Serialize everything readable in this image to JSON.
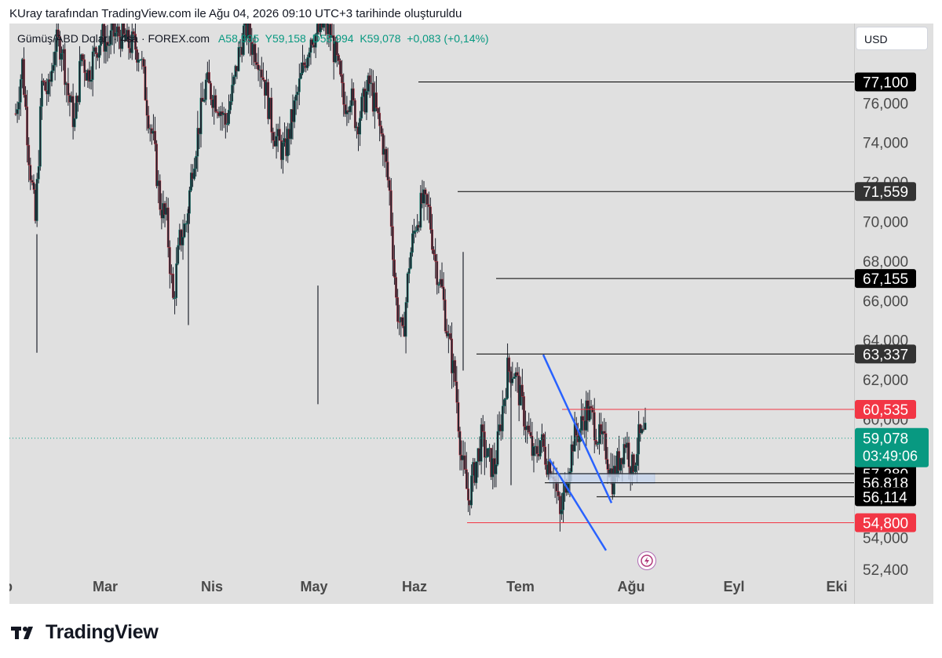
{
  "header": {
    "title": "KUray tarafından TradingView.com ile Ağu 04, 2026 09:10 UTC+3 tarihinde oluşturuldu"
  },
  "legend": {
    "symbol": "Gümüş/ABD Doları · 4sa · FOREX.com",
    "open": "A58,995",
    "high": "Y59,158",
    "low": "D58,994",
    "close": "K59,078",
    "change": "+0,083 (+0,14%)"
  },
  "currency": {
    "label": "USD"
  },
  "brand": {
    "name": "TradingView",
    "logo_icon": "tradingview-logo-icon"
  },
  "colors": {
    "background": "#e0e0e0",
    "up": "#089981",
    "down": "#f23645",
    "trendline": "#2962ff"
  },
  "chart_data": {
    "type": "candlestick",
    "symbol": "Gümüş/ABD Doları",
    "interval": "4sa",
    "x_ticks": [
      "Şub",
      "Mar",
      "Nis",
      "May",
      "Haz",
      "Tem",
      "Ağu",
      "Eyl",
      "Eki"
    ],
    "y_ticks": [
      "52,400",
      "54,000",
      "56,000",
      "58,000",
      "60,000",
      "62,000",
      "64,000",
      "66,000",
      "68,000",
      "70,000",
      "72,000",
      "74,000",
      "76,000"
    ],
    "ylim": [
      52.4,
      78.5
    ],
    "last_price": {
      "value": "59,078",
      "countdown": "03:49:06",
      "color": "#089981"
    },
    "horizontal_levels": [
      {
        "value": "77,100",
        "price": 77.1,
        "start": "Haz",
        "color": "#000000"
      },
      {
        "value": "71,559",
        "price": 71.559,
        "start": "Haz",
        "color": "#000000"
      },
      {
        "value": "67,155",
        "price": 67.155,
        "start": "Tem",
        "color": "#000000"
      },
      {
        "value": "63,337",
        "price": 63.337,
        "start": "Haz",
        "color": "#000000"
      },
      {
        "value": "60,535",
        "price": 60.535,
        "start": "Tem",
        "color": "#f23645"
      },
      {
        "value": "57,280",
        "price": 57.28,
        "start": "Tem",
        "color": "#000000"
      },
      {
        "value": "56,818",
        "price": 56.818,
        "start": "Tem",
        "color": "#000000"
      },
      {
        "value": "56,114",
        "price": 56.114,
        "start": "Tem",
        "color": "#000000"
      },
      {
        "value": "54,800",
        "price": 54.8,
        "start": "Haz",
        "color": "#f23645"
      }
    ],
    "trendlines": [
      {
        "from": [
          "Tem",
          63.3
        ],
        "to": [
          "Ağu",
          55.8
        ],
        "color": "#2962ff"
      },
      {
        "from": [
          "Tem",
          58.0
        ],
        "to": [
          "Ağu",
          53.4
        ],
        "color": "#2962ff"
      }
    ],
    "zone": {
      "from": 56.8,
      "to": 57.3,
      "color": "#c5d4ec"
    },
    "closes": [
      75.5,
      78.0,
      73.5,
      70.0,
      77.0,
      76.5,
      79.0,
      79.0,
      76.5,
      75.0,
      78.5,
      77.5,
      78.5,
      79.5,
      79.0,
      79.5,
      79.5,
      79.0,
      79.0,
      78.5,
      76.0,
      74.0,
      71.0,
      70.0,
      66.0,
      69.0,
      70.0,
      73.0,
      75.0,
      77.0,
      76.5,
      76.0,
      75.0,
      76.5,
      78.5,
      80.0,
      79.0,
      78.5,
      77.0,
      75.0,
      74.0,
      73.5,
      75.0,
      76.5,
      78.0,
      79.5,
      79.5,
      80.0,
      79.5,
      78.0,
      76.0,
      76.5,
      75.0,
      76.0,
      77.0,
      75.5,
      74.0,
      71.5,
      66.0,
      64.0,
      68.0,
      70.0,
      71.0,
      70.5,
      68.0,
      66.5,
      64.0,
      62.0,
      58.0,
      56.0,
      57.5,
      59.0,
      58.0,
      57.5,
      60.0,
      62.5,
      62.5,
      61.0,
      59.5,
      58.0,
      59.0,
      58.0,
      57.5,
      55.0,
      57.0,
      59.0,
      59.5,
      60.5,
      60.0,
      59.0,
      58.5,
      57.0,
      58.0,
      59.0,
      57.5,
      59.0,
      59.1
    ],
    "lows_extreme": [
      63.4,
      64.8,
      60.8,
      62.5,
      56.7
    ],
    "note": ""
  }
}
